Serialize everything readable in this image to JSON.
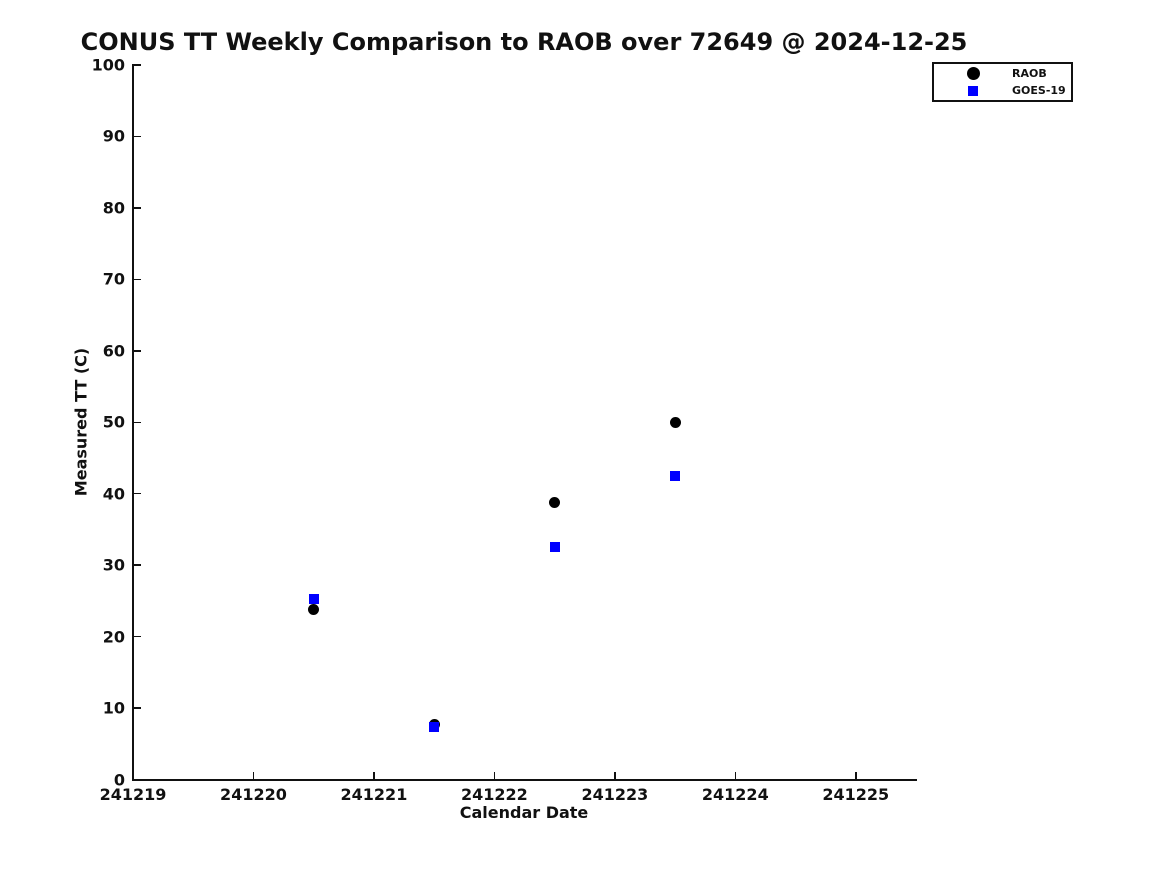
{
  "chart_data": {
    "type": "scatter",
    "title": "CONUS TT Weekly Comparison to RAOB over 72649 @ 2024-12-25",
    "xlabel": "Calendar Date",
    "ylabel": "Measured TT (C)",
    "x": [
      241220.5,
      241221.5,
      241222.5,
      241223.5
    ],
    "series": [
      {
        "name": "RAOB",
        "marker": "circle",
        "color": "#000000",
        "values": [
          23.8,
          7.7,
          38.8,
          50.0
        ]
      },
      {
        "name": "GOES-19",
        "marker": "square",
        "color": "#0000ff",
        "values": [
          25.2,
          7.3,
          32.6,
          42.5
        ]
      }
    ],
    "xlim": [
      241219,
      241225.5
    ],
    "ylim": [
      0,
      100
    ],
    "xticks": [
      "241219",
      "241220",
      "241221",
      "241222",
      "241223",
      "241224",
      "241225"
    ],
    "xtick_values": [
      241219,
      241220,
      241221,
      241222,
      241223,
      241224,
      241225
    ],
    "yticks": [
      "0",
      "10",
      "20",
      "30",
      "40",
      "50",
      "60",
      "70",
      "80",
      "90",
      "100"
    ],
    "ytick_values": [
      0,
      10,
      20,
      30,
      40,
      50,
      60,
      70,
      80,
      90,
      100
    ],
    "grid": false,
    "legend_position": "upper right"
  },
  "colors": {
    "raob": "#000000",
    "goes19": "#0000ff",
    "text": "#111111",
    "background": "#ffffff"
  }
}
